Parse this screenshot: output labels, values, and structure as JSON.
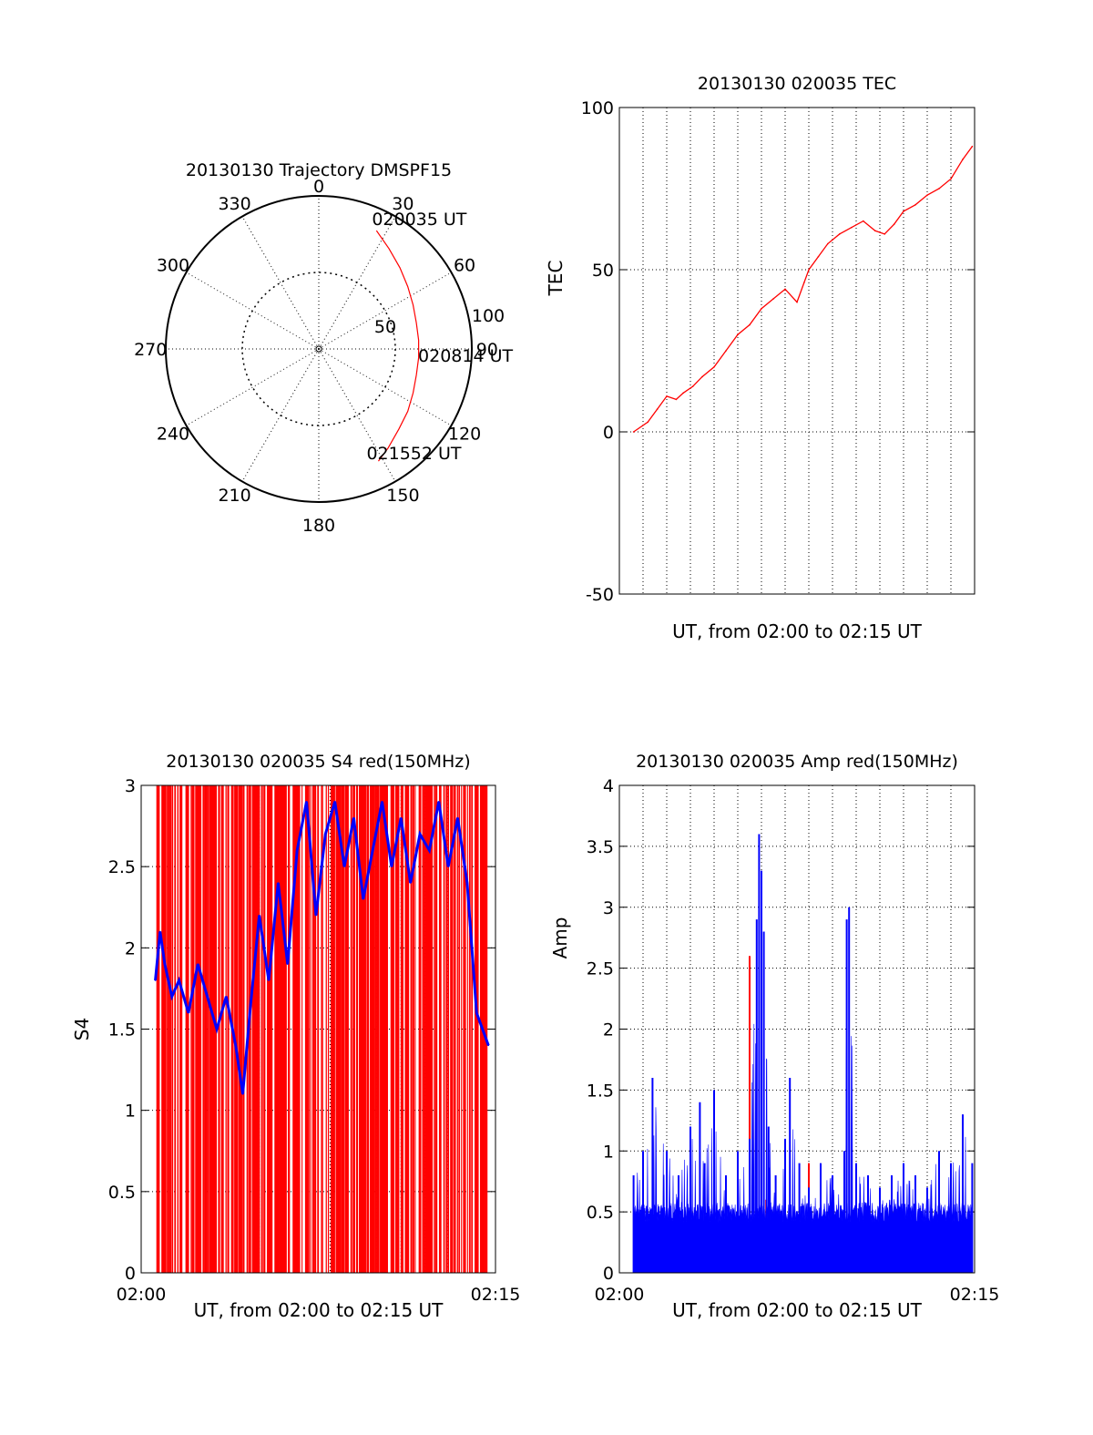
{
  "colors": {
    "red": "#ff0000",
    "blue": "#0000ff",
    "axis": "#000000",
    "grid": "#000000"
  },
  "chart_data": [
    {
      "id": "trajectory",
      "type": "polar",
      "title": "20130130 Trajectory DMSPF15",
      "angle_ticks": [
        "0",
        "30",
        "60",
        "90",
        "120",
        "150",
        "180",
        "210",
        "240",
        "270",
        "300",
        "330"
      ],
      "angle_tick_values": [
        0,
        30,
        60,
        90,
        120,
        150,
        180,
        210,
        240,
        270,
        300,
        330
      ],
      "radial_ticks": [
        "50",
        "100"
      ],
      "radial_tick_values": [
        50,
        100
      ],
      "rmax": 100,
      "grid": true,
      "series": [
        {
          "color": "red",
          "points": [
            [
              26,
              86
            ],
            [
              35,
              80
            ],
            [
              45,
              75
            ],
            [
              55,
              71
            ],
            [
              65,
              68
            ],
            [
              75,
              66
            ],
            [
              85,
              65.5
            ],
            [
              95,
              65.5
            ],
            [
              105,
              66
            ],
            [
              115,
              68
            ],
            [
              125,
              71
            ],
            [
              135,
              74
            ],
            [
              145,
              79
            ],
            [
              152,
              83
            ]
          ]
        }
      ],
      "annotations": [
        {
          "text": "020035 UT",
          "at": [
            26,
            86
          ]
        },
        {
          "text": "020814 UT",
          "at": [
            90,
            65.5
          ]
        },
        {
          "text": "021552 UT",
          "at": [
            152,
            83
          ]
        }
      ]
    },
    {
      "id": "tec",
      "type": "line",
      "title": "20130130 020035 TEC",
      "xlabel": "UT, from 02:00 to 02:15 UT",
      "ylabel": "TEC",
      "xlim": [
        0,
        15
      ],
      "ylim": [
        -50,
        100
      ],
      "yticks": [
        -50,
        0,
        50,
        100
      ],
      "ytick_labels": [
        "-50",
        "0",
        "50",
        "100"
      ],
      "xgrid_count": 15,
      "grid": true,
      "series": [
        {
          "color": "red",
          "x": [
            0.6,
            1.2,
            1.6,
            2.0,
            2.4,
            2.7,
            3.1,
            3.5,
            4.0,
            4.5,
            5.0,
            5.5,
            6.0,
            6.5,
            7.0,
            7.5,
            7.8,
            8.0,
            8.4,
            8.8,
            9.3,
            9.8,
            10.3,
            10.8,
            11.2,
            11.6,
            12.0,
            12.5,
            13.0,
            13.5,
            14.0,
            14.5,
            14.9
          ],
          "y": [
            0,
            3,
            7,
            11,
            10,
            12,
            14,
            17,
            20,
            25,
            30,
            33,
            38,
            41,
            44,
            40,
            46,
            50,
            54,
            58,
            61,
            63,
            65,
            62,
            61,
            64,
            68,
            70,
            73,
            75,
            78,
            84,
            88
          ]
        }
      ]
    },
    {
      "id": "s4",
      "type": "line",
      "title": "20130130 020035 S4 red(150MHz)",
      "xlabel": "UT, from 02:00 to 02:15 UT",
      "ylabel": "S4",
      "xlim": [
        0,
        15
      ],
      "ylim": [
        0,
        3
      ],
      "yticks": [
        0,
        0.5,
        1,
        1.5,
        2,
        2.5,
        3
      ],
      "ytick_labels": [
        "0",
        "0.5",
        "1",
        "1.5",
        "2",
        "2.5",
        "3"
      ],
      "xticks": [
        0,
        15
      ],
      "xtick_labels": [
        "02:00",
        "02:15"
      ],
      "grid": true,
      "series": [
        {
          "color": "red",
          "style": "spikes",
          "x_range": [
            0.6,
            14.7
          ],
          "count": 130
        },
        {
          "color": "blue",
          "x": [
            0.6,
            0.8,
            1.0,
            1.3,
            1.6,
            2.0,
            2.4,
            2.8,
            3.2,
            3.6,
            4.0,
            4.3,
            4.6,
            5.0,
            5.4,
            5.8,
            6.2,
            6.6,
            7.0,
            7.4,
            7.8,
            8.2,
            8.6,
            9.0,
            9.4,
            9.8,
            10.2,
            10.6,
            11.0,
            11.4,
            11.8,
            12.2,
            12.6,
            13.0,
            13.4,
            13.8,
            14.2,
            14.7
          ],
          "y": [
            1.8,
            2.1,
            1.9,
            1.7,
            1.8,
            1.6,
            1.9,
            1.7,
            1.5,
            1.7,
            1.4,
            1.1,
            1.6,
            2.2,
            1.8,
            2.4,
            1.9,
            2.6,
            2.9,
            2.2,
            2.7,
            2.9,
            2.5,
            2.8,
            2.3,
            2.6,
            2.9,
            2.5,
            2.8,
            2.4,
            2.7,
            2.6,
            2.9,
            2.5,
            2.8,
            2.4,
            1.6,
            1.4
          ]
        }
      ]
    },
    {
      "id": "amp",
      "type": "line",
      "title": "20130130 020035 Amp red(150MHz)",
      "xlabel": "UT, from 02:00 to 02:15 UT",
      "ylabel": "Amp",
      "xlim": [
        0,
        15
      ],
      "ylim": [
        0,
        4
      ],
      "yticks": [
        0,
        0.5,
        1,
        1.5,
        2,
        2.5,
        3,
        3.5,
        4
      ],
      "ytick_labels": [
        "0",
        "0.5",
        "1",
        "1.5",
        "2",
        "2.5",
        "3",
        "3.5",
        "4"
      ],
      "xticks": [
        0,
        15
      ],
      "xtick_labels": [
        "02:00",
        "02:15"
      ],
      "grid": true,
      "series": [
        {
          "color": "red",
          "x": [
            5.5,
            5.8,
            6.0,
            6.2,
            8.0,
            10.0
          ],
          "y": [
            2.6,
            0.5,
            0.5,
            0.6,
            0.9,
            0.6
          ]
        },
        {
          "color": "blue",
          "base": 0.55,
          "x": [
            0.6,
            1.0,
            1.4,
            2.0,
            2.5,
            3.0,
            3.4,
            3.6,
            4.0,
            4.5,
            5.0,
            5.5,
            5.8,
            5.9,
            6.0,
            6.1,
            6.3,
            6.6,
            7.0,
            7.2,
            7.6,
            8.0,
            8.5,
            9.0,
            9.5,
            9.6,
            9.7,
            10.0,
            10.5,
            11.0,
            11.5,
            12.0,
            12.5,
            13.0,
            13.5,
            14.0,
            14.5,
            14.9
          ],
          "y": [
            0.8,
            1.0,
            1.6,
            1.0,
            0.8,
            1.2,
            1.4,
            0.9,
            1.5,
            0.8,
            1.0,
            1.1,
            2.9,
            3.6,
            3.3,
            2.8,
            1.2,
            0.8,
            1.1,
            1.6,
            0.9,
            0.7,
            0.9,
            0.8,
            1.0,
            2.9,
            3.0,
            0.9,
            0.8,
            0.7,
            0.8,
            0.9,
            0.8,
            0.7,
            1.0,
            0.9,
            1.3,
            0.9
          ]
        }
      ]
    }
  ]
}
